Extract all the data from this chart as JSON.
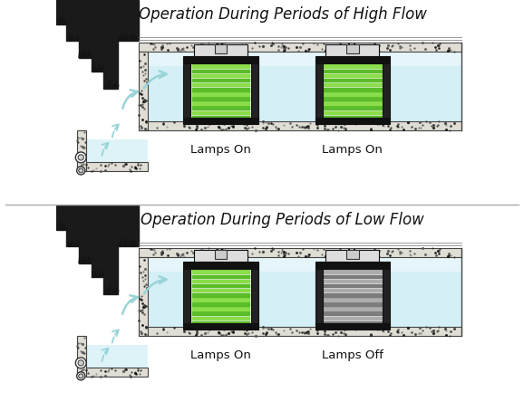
{
  "title_high": "Operation During Periods of High Flow",
  "title_low": "Operation During Periods of Low Flow",
  "label_lamps_on": "Lamps On",
  "label_lamps_off": "Lamps Off",
  "bg_color": "#ffffff",
  "water_color": "#d0eef5",
  "water_top_color": "#e8f6fb",
  "concrete_color": "#e0ddd4",
  "concrete_edge": "#444444",
  "earth_dark": "#111111",
  "lamp_on_green": "#66cc33",
  "lamp_off_gray": "#888888",
  "arrow_color": "#99d4d8",
  "frame_dark": "#111111",
  "title_fontsize": 12,
  "label_fontsize": 9.5
}
